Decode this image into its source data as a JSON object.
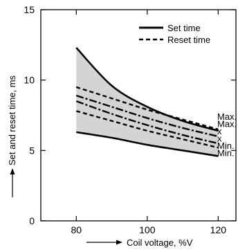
{
  "chart_data": {
    "type": "line",
    "title": "",
    "xlabel": "Coil voltage, %V",
    "ylabel": "Set and reset time, ms",
    "xlim": [
      70,
      125
    ],
    "ylim": [
      0,
      15
    ],
    "x_ticks": [
      80,
      100,
      120
    ],
    "y_ticks": [
      0,
      5,
      10,
      15
    ],
    "grid": false,
    "legend_position": "top-right",
    "legend": [
      {
        "label": "Set time",
        "style": "solid"
      },
      {
        "label": "Reset time",
        "style": "dashed"
      }
    ],
    "shaded_band": {
      "upper": "set_max",
      "lower": "set_min",
      "color": "#d4d4d4"
    },
    "x": [
      80,
      90,
      100,
      110,
      120
    ],
    "series": [
      {
        "id": "set_max",
        "style": "solid",
        "values": [
          12.3,
          9.6,
          8.1,
          7.1,
          6.4
        ],
        "end_label": "Max."
      },
      {
        "id": "reset_max",
        "style": "dashed",
        "values": [
          9.5,
          8.7,
          7.9,
          7.2,
          6.5
        ],
        "end_label": "Max."
      },
      {
        "id": "set_avg",
        "style": "dashdot",
        "values": [
          8.9,
          8.1,
          7.3,
          6.6,
          6.0
        ],
        "end_label": "x"
      },
      {
        "id": "reset_avg",
        "style": "dashdot",
        "values": [
          8.5,
          7.6,
          6.8,
          6.1,
          5.5
        ],
        "end_label": "x"
      },
      {
        "id": "reset_min",
        "style": "dashed",
        "values": [
          7.8,
          7.1,
          6.4,
          5.8,
          5.2
        ],
        "end_label": "Min."
      },
      {
        "id": "set_min",
        "style": "solid",
        "values": [
          6.3,
          5.9,
          5.4,
          5.0,
          4.6
        ],
        "end_label": "Min."
      }
    ]
  }
}
